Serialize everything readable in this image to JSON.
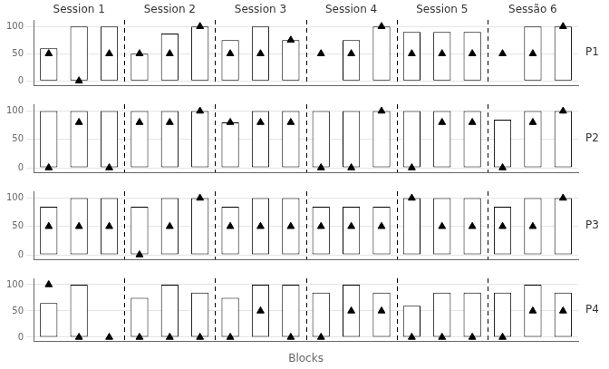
{
  "chart_data": [
    {
      "type": "bar",
      "title": "P1",
      "annotations": [
        "Session 1",
        "Session 2",
        "Session 3",
        "Session 4",
        "Session 5",
        "Sessão 6"
      ],
      "categories": [
        null,
        null,
        null,
        null,
        null,
        null,
        null,
        null,
        null,
        null,
        null,
        null,
        null,
        null,
        null,
        null,
        null,
        null
      ],
      "series": [
        {
          "type": "bar",
          "color": "white",
          "values": [
            60,
            100,
            100,
            50,
            87,
            100,
            75,
            100,
            75,
            0,
            75,
            100,
            90,
            90,
            90,
            0,
            100,
            100
          ]
        },
        {
          "type": "scatter",
          "marker": "triangle",
          "color": "black",
          "values": [
            50,
            0,
            50,
            50,
            50,
            100,
            50,
            50,
            75,
            50,
            50,
            100,
            50,
            50,
            50,
            50,
            50,
            100
          ]
        }
      ],
      "ylim": [
        -8,
        112
      ],
      "yticks": [
        0,
        50,
        100
      ],
      "grid": true,
      "tick_labels": "y"
    },
    {
      "type": "bar",
      "title": "P2",
      "categories": [
        null,
        null,
        null,
        null,
        null,
        null,
        null,
        null,
        null,
        null,
        null,
        null,
        null,
        null,
        null,
        null,
        null,
        null
      ],
      "series": [
        {
          "type": "bar",
          "color": "white",
          "values": [
            100,
            100,
            100,
            100,
            100,
            100,
            80,
            100,
            100,
            100,
            100,
            100,
            100,
            100,
            100,
            85,
            100,
            100
          ]
        },
        {
          "type": "scatter",
          "marker": "triangle",
          "color": "black",
          "values": [
            0,
            80,
            0,
            80,
            80,
            100,
            80,
            80,
            80,
            0,
            0,
            100,
            0,
            80,
            80,
            0,
            80,
            100
          ]
        }
      ],
      "ylim": [
        -8,
        112
      ],
      "yticks": [
        0,
        50,
        100
      ],
      "grid": true,
      "tick_labels": "y"
    },
    {
      "type": "bar",
      "title": "P3",
      "categories": [
        null,
        null,
        null,
        null,
        null,
        null,
        null,
        null,
        null,
        null,
        null,
        null,
        null,
        null,
        null,
        null,
        null,
        null
      ],
      "series": [
        {
          "type": "bar",
          "color": "white",
          "values": [
            85,
            100,
            100,
            85,
            100,
            100,
            85,
            100,
            100,
            85,
            85,
            85,
            100,
            100,
            100,
            85,
            100,
            100
          ]
        },
        {
          "type": "scatter",
          "marker": "triangle",
          "color": "black",
          "values": [
            50,
            50,
            50,
            0,
            50,
            100,
            50,
            50,
            50,
            50,
            50,
            50,
            100,
            50,
            50,
            50,
            50,
            100
          ]
        }
      ],
      "ylim": [
        -8,
        112
      ],
      "yticks": [
        0,
        50,
        100
      ],
      "grid": true,
      "tick_labels": "y"
    },
    {
      "type": "bar",
      "title": "P4",
      "xlabel": "Blocks",
      "categories": [
        null,
        null,
        null,
        null,
        null,
        null,
        null,
        null,
        null,
        null,
        null,
        null,
        null,
        null,
        null,
        null,
        null,
        null
      ],
      "series": [
        {
          "type": "bar",
          "color": "white",
          "values": [
            65,
            100,
            0,
            75,
            100,
            85,
            75,
            100,
            100,
            85,
            100,
            85,
            60,
            85,
            85,
            85,
            100,
            85
          ]
        },
        {
          "type": "scatter",
          "marker": "triangle",
          "color": "black",
          "values": [
            100,
            0,
            0,
            0,
            0,
            0,
            0,
            50,
            0,
            0,
            50,
            50,
            0,
            0,
            0,
            0,
            50,
            50
          ]
        }
      ],
      "ylim": [
        -8,
        112
      ],
      "yticks": [
        0,
        50,
        100
      ],
      "grid": true,
      "tick_labels": "y"
    }
  ]
}
